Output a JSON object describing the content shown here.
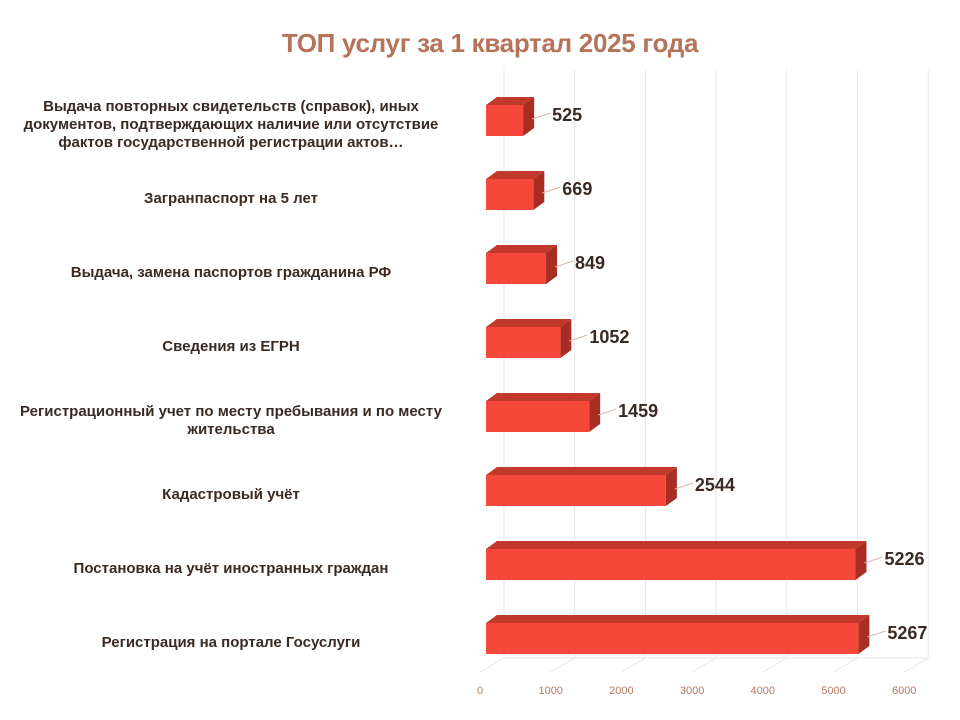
{
  "chart_data": {
    "type": "bar",
    "orientation": "horizontal",
    "title": "ТОП услуг за 1 квартал 2025 года",
    "categories": [
      "Выдача повторных свидетельств (справок), иных документов, подтверждающих наличие или отсутствие фактов государственной регистрации актов…",
      "Загранпаспорт на 5 лет",
      "Выдача, замена паспортов гражданина РФ",
      "Сведения из ЕГРН",
      "Регистрационный учет по месту пребывания и по месту жительства",
      "Кадастровый учёт",
      "Постановка на учёт иностранных граждан",
      "Регистрация на портале Госуслуги"
    ],
    "values": [
      525,
      669,
      849,
      1052,
      1459,
      2544,
      5226,
      5267
    ],
    "xlim": [
      0,
      6000
    ],
    "xticks": [
      "0",
      "1000",
      "2000",
      "3000",
      "4000",
      "5000",
      "6000"
    ],
    "grid": true,
    "style": "3d",
    "colors": {
      "title": "#b5735a",
      "bar_front": "#f5473a",
      "bar_top": "#c0392b",
      "bar_side": "#a82d22",
      "label": "#3b2a22",
      "tick": "#b07a66",
      "grid": "#e6e6e6"
    }
  }
}
